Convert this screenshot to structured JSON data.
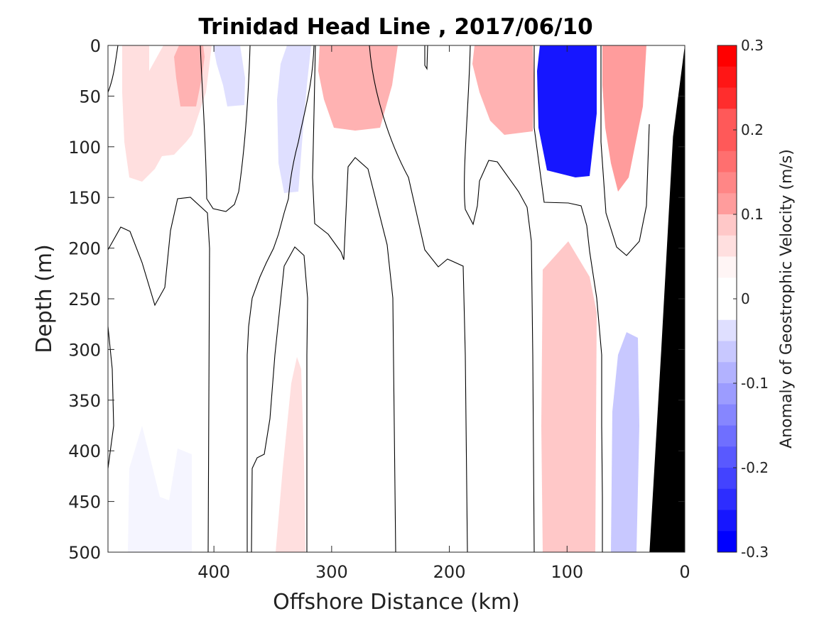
{
  "chart_data": {
    "type": "heatmap",
    "title": "Trinidad Head Line , 2017/06/10",
    "xlabel": "Offshore Distance (km)",
    "ylabel": "Depth (m)",
    "xlim": [
      490,
      0
    ],
    "ylim": [
      0,
      500
    ],
    "x_reversed": true,
    "y_reversed": true,
    "xticks": [
      400,
      300,
      200,
      100,
      0
    ],
    "yticks": [
      0,
      50,
      100,
      150,
      200,
      250,
      300,
      350,
      400,
      450,
      500
    ],
    "colorbar": {
      "label": "Anomaly of Geostrophic Velocity (m/s)",
      "range": [
        -0.3,
        0.3
      ],
      "step": 0.025,
      "ticks": [
        0.3,
        0.2,
        0.1,
        0,
        -0.1,
        -0.2,
        -0.3
      ],
      "colormap": "blue-white-red",
      "positive_color": "#ff0000",
      "negative_color": "#0000ff",
      "zero_color": "#ffffff"
    },
    "bathymetry_color": "#000000",
    "bathymetry_edge": [
      [
        0,
        0
      ],
      [
        10,
        90
      ],
      [
        20,
        300
      ],
      [
        30,
        500
      ]
    ],
    "velocity_features": [
      {
        "x": 435,
        "depth": 60,
        "velocity": 0.06
      },
      {
        "x": 420,
        "depth": 20,
        "velocity": 0.09
      },
      {
        "x": 325,
        "depth": 40,
        "velocity": -0.06
      },
      {
        "x": 270,
        "depth": 20,
        "velocity": 0.09
      },
      {
        "x": 160,
        "depth": 20,
        "velocity": 0.09
      },
      {
        "x": 105,
        "depth": 15,
        "velocity": -0.28
      },
      {
        "x": 100,
        "depth": 380,
        "velocity": 0.07
      },
      {
        "x": 55,
        "depth": 20,
        "velocity": 0.13
      },
      {
        "x": 330,
        "depth": 420,
        "velocity": 0.05
      },
      {
        "x": 445,
        "depth": 450,
        "velocity": -0.03
      },
      {
        "x": 55,
        "depth": 470,
        "velocity": -0.07
      }
    ]
  }
}
